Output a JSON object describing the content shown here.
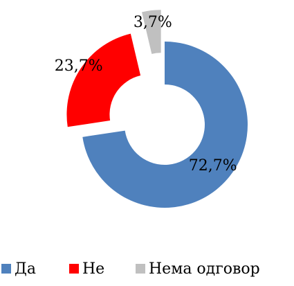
{
  "chart_data": {
    "type": "donut",
    "categories": [
      "Да",
      "Не",
      "Нема одговор"
    ],
    "values": [
      72.7,
      23.7,
      3.7
    ],
    "value_labels": [
      "72,7%",
      "23,7%",
      "3,7%"
    ],
    "colors": [
      "#4f81bd",
      "#ff0000",
      "#c0c0c0"
    ],
    "legend": "bottom"
  }
}
